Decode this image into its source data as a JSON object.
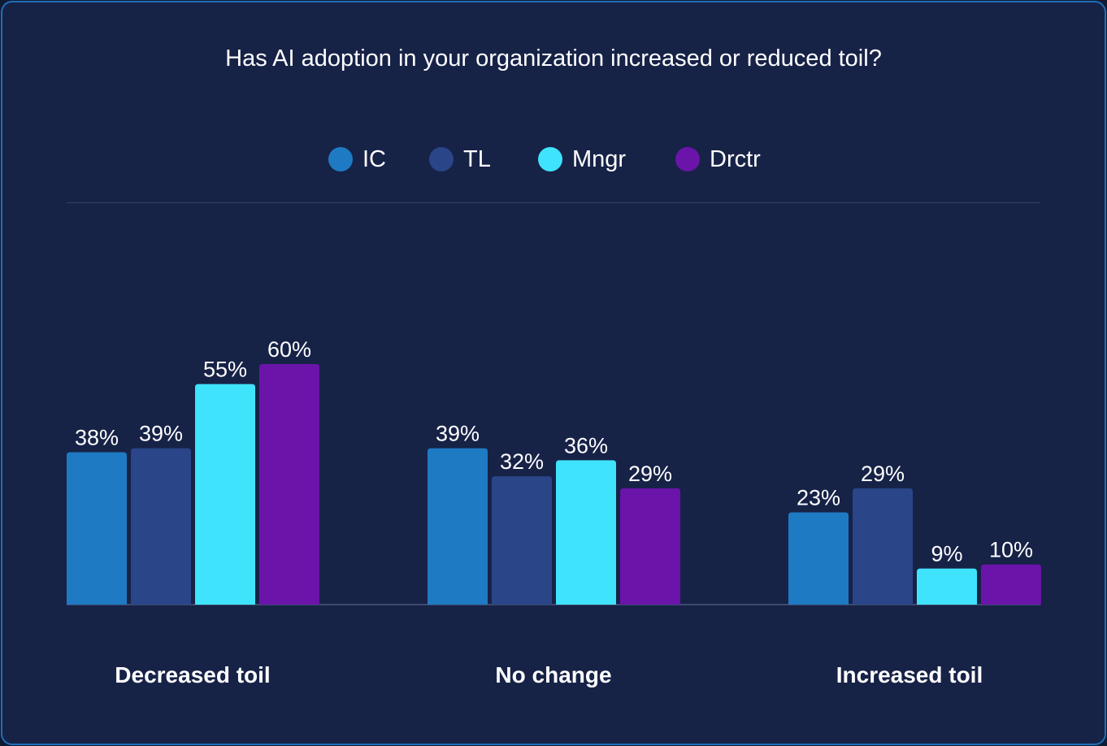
{
  "chart_data": {
    "type": "bar",
    "title": "Has AI adoption in your organization increased or reduced toil?",
    "categories": [
      "Decreased toil",
      "No change",
      "Increased toil"
    ],
    "series": [
      {
        "name": "IC",
        "color": "#1f7ac4",
        "values": [
          38,
          39,
          23
        ],
        "labels": [
          "38%",
          "39%",
          "23%"
        ]
      },
      {
        "name": "TL",
        "color": "#2a4588",
        "values": [
          39,
          32,
          29
        ],
        "labels": [
          "39%",
          "32%",
          "29%"
        ]
      },
      {
        "name": "Mngr",
        "color": "#3fe3fc",
        "values": [
          55,
          36,
          9
        ],
        "labels": [
          "55%",
          "36%",
          "9%"
        ]
      },
      {
        "name": "Drctr",
        "color": "#6a14a9",
        "values": [
          60,
          29,
          10
        ],
        "labels": [
          "60%",
          "29%",
          "10%"
        ]
      }
    ],
    "xlabel": "",
    "ylabel": "",
    "ylim": [
      0,
      60
    ],
    "grid": false,
    "legend": "top-center"
  }
}
